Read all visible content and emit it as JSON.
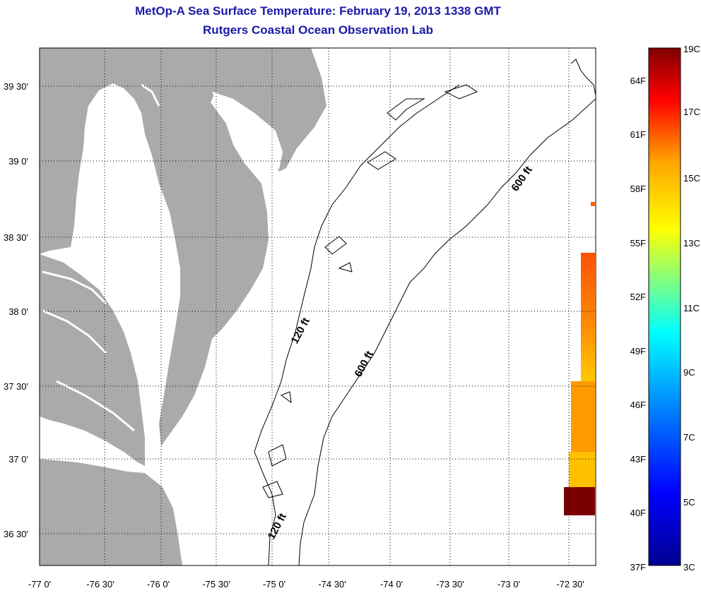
{
  "titles": {
    "line1": "MetOp-A Sea Surface Temperature:  February 19, 2013 1338 GMT",
    "line2": "Rutgers Coastal Ocean Observation Lab"
  },
  "map": {
    "lat_labels": [
      "39 30'",
      "39 0'",
      "38 30'",
      "38 0'",
      "37 30'",
      "37 0'",
      "36 30'"
    ],
    "lon_labels": [
      "-77 0'",
      "-76 30'",
      "-76 0'",
      "-75 30'",
      "-75 0'",
      "-74 30'",
      "-74 0'",
      "-73 30'",
      "-73 0'",
      "-72 30'"
    ],
    "contour_labels": [
      "120 ft",
      "600 ft",
      "600 ft",
      "120 ft"
    ],
    "colors": {
      "land": "#aaaaaa",
      "water": "#ffffff",
      "grid": "#000000"
    }
  },
  "colorbar": {
    "fahrenheit_labels": [
      "64F",
      "61F",
      "58F",
      "55F",
      "52F",
      "49F",
      "46F",
      "43F",
      "40F",
      "37F"
    ],
    "celsius_labels": [
      "19C",
      "17C",
      "15C",
      "13C",
      "11C",
      "9C",
      "7C",
      "5C",
      "3C"
    ],
    "colors": [
      "#800000",
      "#ff0000",
      "#ffa500",
      "#ffff00",
      "#00ffff",
      "#0080ff",
      "#0000ff",
      "#00008f"
    ]
  }
}
